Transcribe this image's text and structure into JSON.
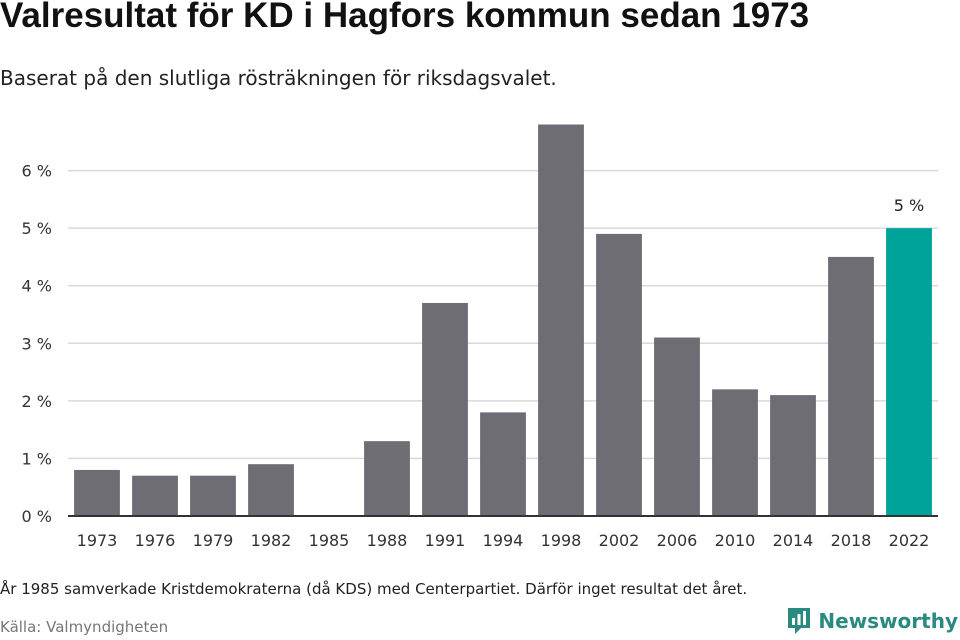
{
  "header": {
    "title": "Valresultat för KD i Hagfors kommun sedan 1973",
    "subtitle": "Baserat på den slutliga rösträkningen för riksdagsvalet."
  },
  "footer": {
    "note": "År 1985 samverkade Kristdemokraterna (då KDS) med Centerpartiet. Därför inget resultat det året.",
    "source": "Källa: Valmyndigheten",
    "brand": "Newsworthy",
    "brand_icon": "newsworthy-logo-icon"
  },
  "chart_data": {
    "type": "bar",
    "title": "Valresultat för KD i Hagfors kommun sedan 1973",
    "subtitle": "Baserat på den slutliga rösträkningen för riksdagsvalet.",
    "categories": [
      "1973",
      "1976",
      "1979",
      "1982",
      "1985",
      "1988",
      "1991",
      "1994",
      "1998",
      "2002",
      "2006",
      "2010",
      "2014",
      "2018",
      "2022"
    ],
    "values": [
      0.8,
      0.7,
      0.7,
      0.9,
      null,
      1.3,
      3.7,
      1.8,
      6.8,
      4.9,
      3.1,
      2.2,
      2.1,
      4.5,
      5.0
    ],
    "ylim": [
      0,
      7
    ],
    "yticks": [
      0,
      1,
      2,
      3,
      4,
      5,
      6
    ],
    "ytick_labels": [
      "0 %",
      "1 %",
      "2 %",
      "3 %",
      "4 %",
      "5 %",
      "6 %"
    ],
    "value_labels": [
      {
        "category": "2022",
        "label": "5 %"
      }
    ],
    "highlight": "2022",
    "colors": {
      "bar": "#6e6d73",
      "highlight": "#00a39a",
      "grid": "#d9d9d9",
      "axis": "#333333"
    },
    "grid": true,
    "xlabel": "",
    "ylabel": ""
  }
}
